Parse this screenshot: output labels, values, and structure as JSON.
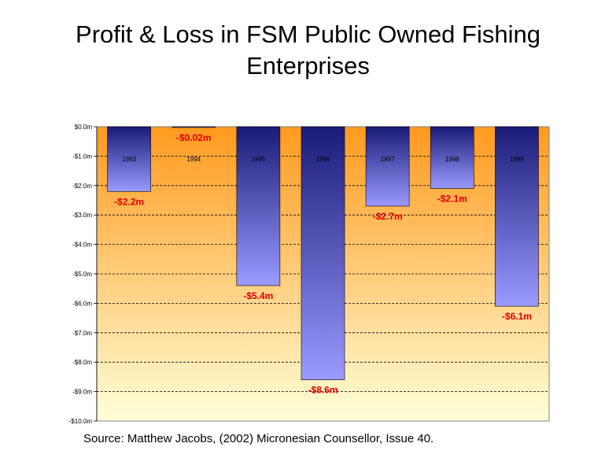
{
  "title_line1": "Profit & Loss in FSM Public Owned Fishing",
  "title_line2": "Enterprises",
  "source": "Source: Matthew Jacobs, (2002) Micronesian Counsellor, Issue 40.",
  "colors": {
    "bg_top": "#ff9a1e",
    "bg_bottom": "#ffffd8",
    "bar_top": "#1a1a78",
    "bar_bottom": "#9a9aff",
    "value_label": "#e00000"
  },
  "chart_data": {
    "type": "bar",
    "title": "Profit & Loss in FSM Public Owned Fishing Enterprises",
    "categories": [
      "1993",
      "1994",
      "1995",
      "1996",
      "1997",
      "1998",
      "1999"
    ],
    "values": [
      -2.2,
      -0.02,
      -5.4,
      -8.6,
      -2.7,
      -2.1,
      -6.1
    ],
    "data_labels": [
      "-$2.2m",
      "-$0.02m",
      "-$5.4m",
      "-$8.6m",
      "-$2.7m",
      "-$2.1m",
      "-$6.1m"
    ],
    "ylim": [
      -10,
      0
    ],
    "yticks": [
      "$0.0m",
      "-$1.0m",
      "-$2.0m",
      "-$3.0m",
      "-$4.0m",
      "-$5.0m",
      "-$6.0m",
      "-$7.0m",
      "-$8.0m",
      "-$9.0m",
      "-$10.0m"
    ],
    "xlabel": "",
    "ylabel": "",
    "grid": true
  }
}
